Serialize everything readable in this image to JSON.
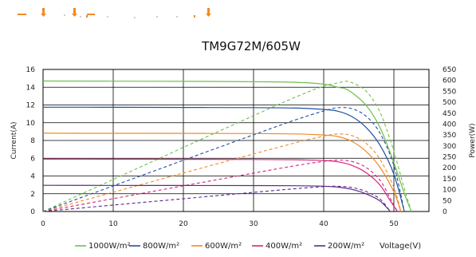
{
  "chart_data": {
    "type": "line",
    "title": "TM9G72M/605W",
    "xlabel": "Voltage(V)",
    "ylabel": "Current(A)",
    "y2label": "Power(W)",
    "xlim": [
      0,
      55
    ],
    "ylim": [
      0,
      16
    ],
    "y2lim": [
      0,
      650
    ],
    "x_ticks": [
      "0",
      "10",
      "20",
      "30",
      "40",
      "50"
    ],
    "y_ticks": [
      "0",
      "2",
      "4",
      "6",
      "8",
      "10",
      "12",
      "14",
      "16"
    ],
    "y2_ticks": [
      "0",
      "50",
      "100",
      "150",
      "200",
      "250",
      "300",
      "350",
      "400",
      "450",
      "500",
      "550",
      "600",
      "650"
    ],
    "grid": true,
    "legend_position": "bottom",
    "series": [
      {
        "name": "1000W/m²",
        "color": "#6cc24a",
        "current": [
          [
            0,
            14.7
          ],
          [
            10,
            14.68
          ],
          [
            20,
            14.66
          ],
          [
            30,
            14.62
          ],
          [
            36,
            14.55
          ],
          [
            40,
            14.35
          ],
          [
            42,
            14.0
          ],
          [
            43,
            13.85
          ],
          [
            44,
            13.4
          ],
          [
            46,
            12.0
          ],
          [
            48,
            9.5
          ],
          [
            50,
            5.5
          ],
          [
            51.5,
            2.0
          ],
          [
            52.5,
            0
          ]
        ],
        "power": [
          [
            0,
            0
          ],
          [
            10,
            146.8
          ],
          [
            20,
            293.2
          ],
          [
            30,
            438.6
          ],
          [
            36,
            523.8
          ],
          [
            40,
            574.0
          ],
          [
            42,
            588.0
          ],
          [
            43,
            595.6
          ],
          [
            44,
            589.6
          ],
          [
            46,
            552.0
          ],
          [
            48,
            456.0
          ],
          [
            50,
            275.0
          ],
          [
            51.5,
            103.0
          ],
          [
            52.5,
            0
          ]
        ]
      },
      {
        "name": "800W/m²",
        "color": "#1f4fa0",
        "current": [
          [
            0,
            11.75
          ],
          [
            10,
            11.74
          ],
          [
            20,
            11.72
          ],
          [
            30,
            11.7
          ],
          [
            36,
            11.65
          ],
          [
            40,
            11.5
          ],
          [
            42,
            11.3
          ],
          [
            44,
            10.7
          ],
          [
            46,
            9.5
          ],
          [
            48,
            7.5
          ],
          [
            50,
            4.2
          ],
          [
            51.5,
            0
          ]
        ],
        "power": [
          [
            0,
            0
          ],
          [
            10,
            117.4
          ],
          [
            20,
            234.4
          ],
          [
            30,
            351.0
          ],
          [
            36,
            419.4
          ],
          [
            40,
            460.0
          ],
          [
            42,
            474.6
          ],
          [
            44,
            470.8
          ],
          [
            46,
            437.0
          ],
          [
            48,
            360.0
          ],
          [
            50,
            210.0
          ],
          [
            51.5,
            0
          ]
        ]
      },
      {
        "name": "600W/m²",
        "color": "#f08a24",
        "current": [
          [
            0,
            8.82
          ],
          [
            10,
            8.81
          ],
          [
            20,
            8.8
          ],
          [
            30,
            8.78
          ],
          [
            36,
            8.74
          ],
          [
            40,
            8.62
          ],
          [
            42,
            8.45
          ],
          [
            44,
            7.9
          ],
          [
            46,
            6.8
          ],
          [
            48,
            5.0
          ],
          [
            50,
            2.2
          ],
          [
            51,
            0
          ]
        ],
        "power": [
          [
            0,
            0
          ],
          [
            10,
            88.1
          ],
          [
            20,
            176.0
          ],
          [
            30,
            263.4
          ],
          [
            36,
            314.6
          ],
          [
            40,
            344.8
          ],
          [
            42,
            354.9
          ],
          [
            44,
            347.6
          ],
          [
            46,
            312.8
          ],
          [
            48,
            240.0
          ],
          [
            50,
            110.0
          ],
          [
            51,
            0
          ]
        ]
      },
      {
        "name": "400W/m²",
        "color": "#d6247a",
        "current": [
          [
            0,
            5.9
          ],
          [
            10,
            5.89
          ],
          [
            20,
            5.88
          ],
          [
            30,
            5.86
          ],
          [
            36,
            5.83
          ],
          [
            40,
            5.74
          ],
          [
            42,
            5.6
          ],
          [
            44,
            5.2
          ],
          [
            46,
            4.4
          ],
          [
            48,
            3.0
          ],
          [
            49.5,
            1.2
          ],
          [
            50.5,
            0
          ]
        ],
        "power": [
          [
            0,
            0
          ],
          [
            10,
            58.9
          ],
          [
            20,
            117.6
          ],
          [
            30,
            175.8
          ],
          [
            36,
            209.9
          ],
          [
            40,
            229.6
          ],
          [
            42,
            235.2
          ],
          [
            44,
            228.8
          ],
          [
            46,
            202.4
          ],
          [
            48,
            144.0
          ],
          [
            49.5,
            59.4
          ],
          [
            50.5,
            0
          ]
        ]
      },
      {
        "name": "200W/m²",
        "color": "#5a2a8a",
        "current": [
          [
            0,
            2.95
          ],
          [
            10,
            2.94
          ],
          [
            20,
            2.93
          ],
          [
            30,
            2.92
          ],
          [
            36,
            2.9
          ],
          [
            40,
            2.85
          ],
          [
            42,
            2.75
          ],
          [
            44,
            2.5
          ],
          [
            46,
            2.0
          ],
          [
            48,
            1.2
          ],
          [
            49.5,
            0
          ]
        ],
        "power": [
          [
            0,
            0
          ],
          [
            10,
            29.4
          ],
          [
            20,
            58.6
          ],
          [
            30,
            87.6
          ],
          [
            36,
            104.4
          ],
          [
            40,
            114.0
          ],
          [
            42,
            115.5
          ],
          [
            44,
            110.0
          ],
          [
            46,
            92.0
          ],
          [
            48,
            57.6
          ],
          [
            49.5,
            0
          ]
        ]
      }
    ]
  }
}
